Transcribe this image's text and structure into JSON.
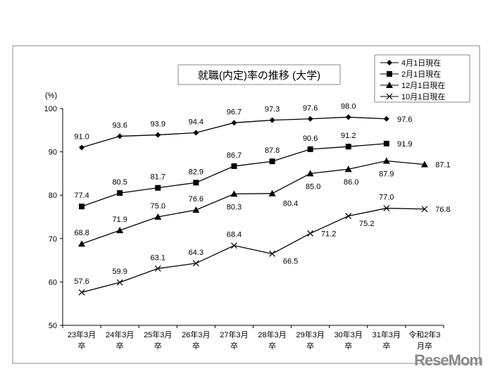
{
  "chart_data": {
    "type": "line",
    "title": "就職(内定)率の推移 (大学)",
    "ylabel": "(%)",
    "ylim": [
      50,
      100
    ],
    "yticks": [
      50,
      60,
      70,
      80,
      90,
      100
    ],
    "grid": false,
    "legend_position": "top-right",
    "categories": [
      [
        "23年3月",
        "卒"
      ],
      [
        "24年3月",
        "卒"
      ],
      [
        "25年3月",
        "卒"
      ],
      [
        "26年3月",
        "卒"
      ],
      [
        "27年3月",
        "卒"
      ],
      [
        "28年3月",
        "卒"
      ],
      [
        "29年3月",
        "卒"
      ],
      [
        "30年3月",
        "卒"
      ],
      [
        "31年3月",
        "卒"
      ],
      [
        "令和2年3",
        "月卒"
      ]
    ],
    "series": [
      {
        "name": "4月1日現在",
        "marker": "diamond",
        "values": [
          91.0,
          93.6,
          93.9,
          94.4,
          96.7,
          97.3,
          97.6,
          98.0,
          97.6,
          null
        ]
      },
      {
        "name": "2月1日現在",
        "marker": "square",
        "values": [
          77.4,
          80.5,
          81.7,
          82.9,
          86.7,
          87.8,
          90.6,
          91.2,
          91.9,
          null
        ]
      },
      {
        "name": "12月1日現在",
        "marker": "triangle",
        "values": [
          68.8,
          71.9,
          75.0,
          76.6,
          80.3,
          80.4,
          85.0,
          86.0,
          87.9,
          87.1
        ]
      },
      {
        "name": "10月1日現在",
        "marker": "x",
        "values": [
          57.6,
          59.9,
          63.1,
          64.3,
          68.4,
          66.5,
          71.2,
          75.2,
          77.0,
          76.8
        ]
      }
    ],
    "color": "#000000"
  },
  "watermark": "ReseMom"
}
